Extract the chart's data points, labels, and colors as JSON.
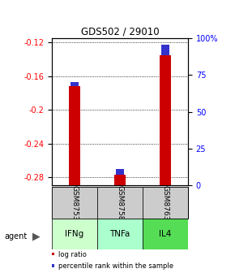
{
  "title": "GDS502 / 29010",
  "samples": [
    "GSM8753",
    "GSM8758",
    "GSM8763"
  ],
  "agents": [
    "IFNg",
    "TNFa",
    "IL4"
  ],
  "log_ratios": [
    -0.172,
    -0.277,
    -0.135
  ],
  "percentile_ranks": [
    3,
    4,
    7
  ],
  "ylim_left": [
    -0.29,
    -0.115
  ],
  "ylim_right": [
    0,
    100
  ],
  "left_ticks": [
    -0.28,
    -0.24,
    -0.2,
    -0.16,
    -0.12
  ],
  "right_ticks": [
    0,
    25,
    50,
    75,
    100
  ],
  "left_tick_labels": [
    "-0.28",
    "-0.24",
    "-0.2",
    "-0.16",
    "-0.12"
  ],
  "right_tick_labels": [
    "0",
    "25",
    "50",
    "75",
    "100%"
  ],
  "bar_color_red": "#cc0000",
  "bar_color_blue": "#3333cc",
  "agent_colors": [
    "#ccffcc",
    "#aaffcc",
    "#55dd55"
  ],
  "sample_box_color": "#cccccc",
  "bar_width": 0.25
}
